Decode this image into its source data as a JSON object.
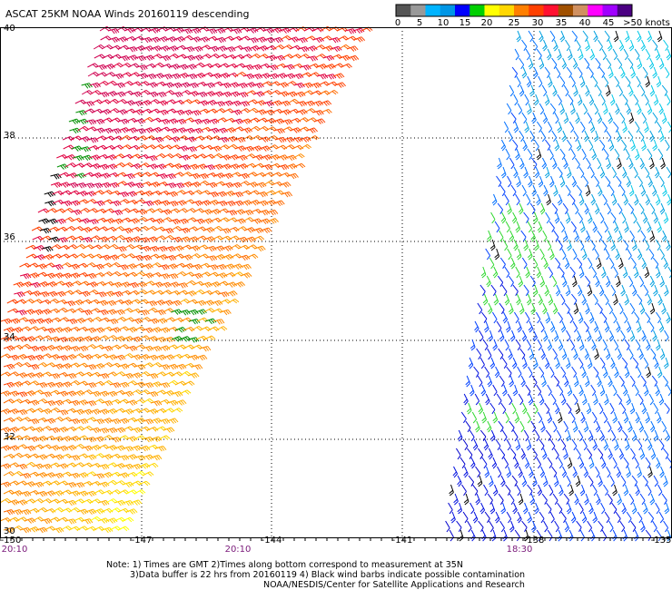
{
  "title": "ASCAT 25KM NOAA Winds 20160119 descending",
  "legend": {
    "colors": [
      "#555555",
      "#999999",
      "#00b4ff",
      "#0096e6",
      "#0000ff",
      "#00d000",
      "#ffff00",
      "#ffd700",
      "#ff7f00",
      "#ff4000",
      "#ff1030",
      "#a05000",
      "#d09060",
      "#ff00ff",
      "#a000ff",
      "#4b0082"
    ],
    "labels": [
      "0",
      "5",
      "10",
      "15",
      "20",
      "25",
      "30",
      "35",
      "40",
      "45",
      ">50 knots"
    ]
  },
  "map": {
    "lat_labels": [
      "40",
      "38",
      "36",
      "34",
      "32",
      "30"
    ],
    "lon_labels": [
      "-150",
      "-147",
      "-144",
      "-141",
      "-138",
      "-135"
    ],
    "time_labels": [
      "20:10",
      "20:10",
      "18:30"
    ]
  },
  "notes": [
    "Note: 1) Times are GMT 2)Times along bottom correspond to measurement at 35N",
    "3)Data buffer is 22 hrs from 20160119 4) Black wind barbs indicate possible contamination",
    "NOAA/NESDIS/Center for Satellite Applications and Research"
  ]
}
